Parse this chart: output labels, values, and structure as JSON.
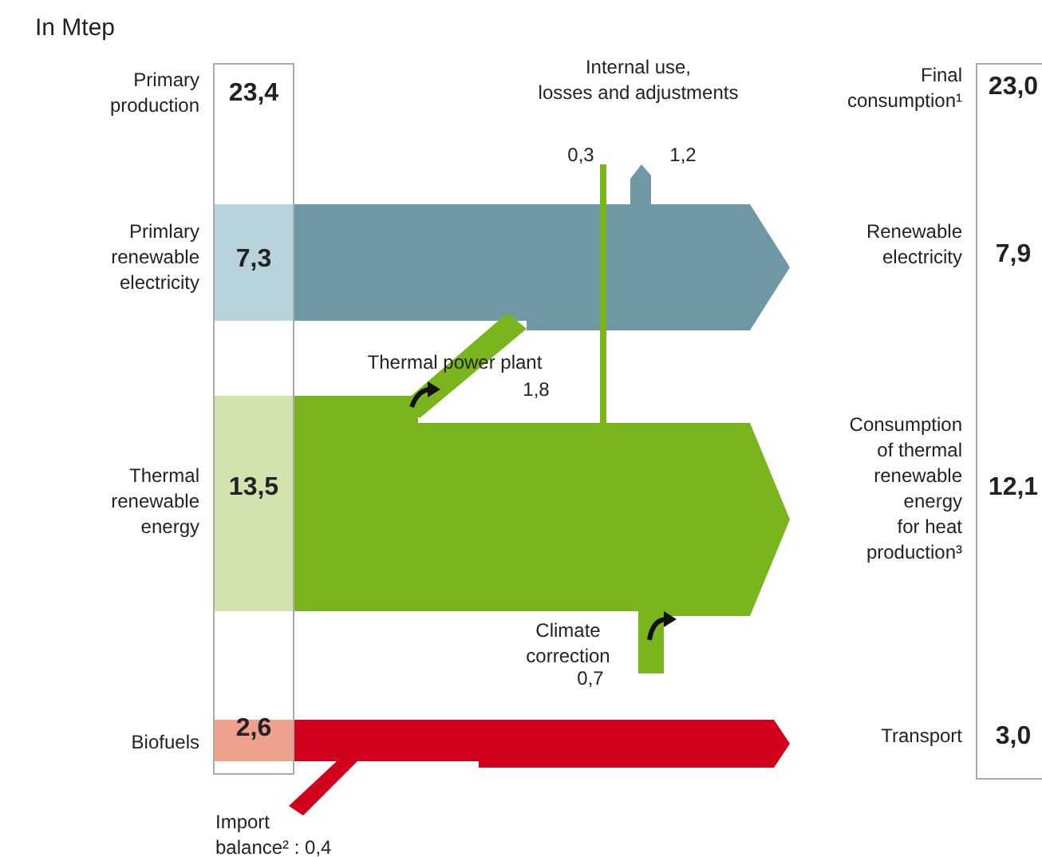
{
  "chart_data": {
    "type": "other",
    "title": "In Mtep",
    "categories": [
      "Primlary renewable electricity",
      "Thermal renewable energy",
      "Biofuels"
    ],
    "colors": [
      "#6f98a5",
      "#7ab51d",
      "#d1001c"
    ],
    "series": [
      {
        "name": "Primary production",
        "colors": [
          "#b9d3dc",
          "#d3e3ae",
          "#eda08c"
        ],
        "values": [
          7.3,
          13.5,
          2.6
        ],
        "value_labels": [
          "7,3",
          "13,5",
          "2,6"
        ]
      },
      {
        "name": "Final consumption¹",
        "values": [
          7.9,
          12.1,
          3.0
        ],
        "value_labels": [
          "7,9",
          "12,1",
          "3,0"
        ]
      }
    ],
    "totals": [
      "23,4",
      "23,0"
    ],
    "annotations": [
      "Renewable electricity",
      "Consumption of thermal renewable energy for heat production³",
      "Transport",
      "Internal use, losses and adjustments",
      "0,3",
      "1,2",
      "Thermal power plant",
      "1,8",
      "Climate correction",
      "0,7",
      "Import balance² : 0,4"
    ]
  }
}
